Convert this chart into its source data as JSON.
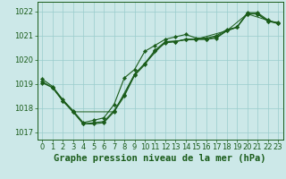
{
  "xlabel": "Graphe pression niveau de la mer (hPa)",
  "background_color": "#cce8e8",
  "grid_color": "#99cccc",
  "line_color": "#1a5c1a",
  "ylim": [
    1016.7,
    1022.4
  ],
  "xlim": [
    -0.5,
    23.5
  ],
  "yticks": [
    1017,
    1018,
    1019,
    1020,
    1021,
    1022
  ],
  "xticks": [
    0,
    1,
    2,
    3,
    4,
    5,
    6,
    7,
    8,
    9,
    10,
    11,
    12,
    13,
    14,
    15,
    16,
    17,
    18,
    19,
    20,
    21,
    22,
    23
  ],
  "series1_x": [
    0,
    1,
    2,
    3,
    4,
    5,
    6,
    7,
    8,
    9,
    10,
    11,
    12,
    13,
    14,
    15,
    16,
    17,
    18,
    19,
    20,
    21,
    22,
    23
  ],
  "series1_y": [
    1019.1,
    1018.85,
    1018.3,
    1017.85,
    1017.35,
    1017.35,
    1017.4,
    1017.85,
    1018.5,
    1019.35,
    1019.8,
    1020.35,
    1020.7,
    1020.75,
    1020.85,
    1020.85,
    1020.85,
    1020.9,
    1021.2,
    1021.35,
    1021.9,
    1021.9,
    1021.6,
    1021.5
  ],
  "series2_x": [
    0,
    1,
    2,
    3,
    4,
    5,
    6,
    7,
    8,
    9,
    10,
    11,
    12,
    13,
    14,
    15,
    16,
    17,
    18,
    19,
    20,
    21,
    22,
    23
  ],
  "series2_y": [
    1019.2,
    1018.9,
    1018.35,
    1017.9,
    1017.4,
    1017.5,
    1017.6,
    1018.15,
    1019.25,
    1019.6,
    1020.35,
    1020.6,
    1020.85,
    1020.95,
    1021.05,
    1020.9,
    1020.9,
    1021.0,
    1021.25,
    1021.35,
    1021.9,
    1021.9,
    1021.6,
    1021.55
  ],
  "series3_x": [
    0,
    1,
    2,
    3,
    4,
    5,
    6,
    7,
    8,
    9,
    10,
    11,
    12,
    13,
    14,
    15,
    16,
    17,
    18,
    19,
    20,
    21,
    22,
    23
  ],
  "series3_y": [
    1019.05,
    1018.85,
    1018.3,
    1017.85,
    1017.35,
    1017.4,
    1017.45,
    1017.9,
    1018.55,
    1019.4,
    1019.85,
    1020.4,
    1020.75,
    1020.75,
    1020.85,
    1020.85,
    1020.85,
    1020.95,
    1021.2,
    1021.35,
    1021.95,
    1021.95,
    1021.65,
    1021.5
  ],
  "series4_x": [
    1,
    3,
    7,
    9,
    12,
    15,
    18,
    20,
    23
  ],
  "series4_y": [
    1018.85,
    1017.85,
    1017.85,
    1019.4,
    1020.75,
    1020.85,
    1021.2,
    1021.9,
    1021.5
  ],
  "xlabel_fontsize": 7.5,
  "xlabel_color": "#1a5c1a",
  "tick_fontsize": 6,
  "tick_color": "#1a5c1a"
}
